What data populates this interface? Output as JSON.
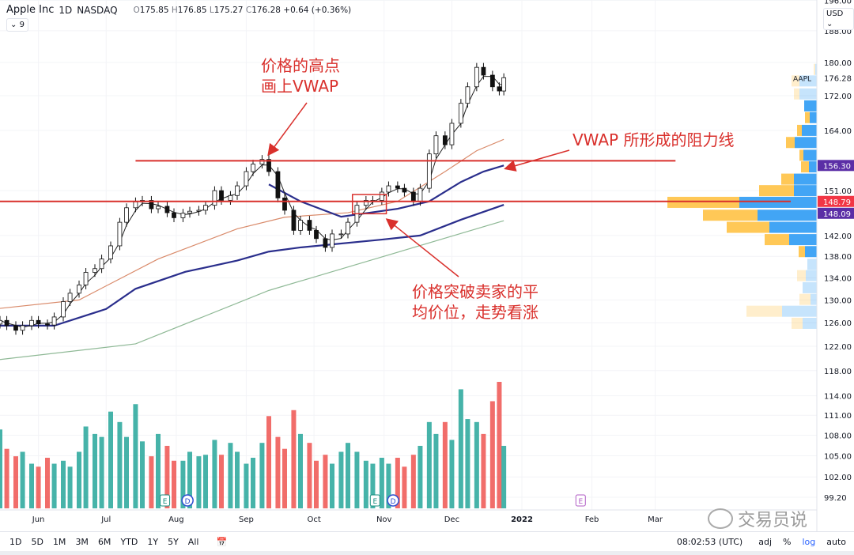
{
  "header": {
    "symbol": "Apple Inc",
    "interval": "1D",
    "exchange": "NASDAQ",
    "open_label": "O",
    "open": "175.85",
    "high_label": "H",
    "high": "176.85",
    "low_label": "L",
    "low": "175.27",
    "close_label": "C",
    "close": "176.28",
    "change": "+0.64 (+0.36%)",
    "indicators_toggle": "9",
    "currency": "USD"
  },
  "annotations": {
    "high_note": "价格的高点\n画上VWAP",
    "resistance_note": "VWAP 所形成的阻力线",
    "breakout_note": "价格突破卖家的平\n均价位，走势看涨"
  },
  "toolbar": {
    "ranges": [
      "1D",
      "5D",
      "1M",
      "3M",
      "6M",
      "YTD",
      "1Y",
      "5Y",
      "All"
    ],
    "time": "08:02:53 (UTC)",
    "adj": "adj",
    "percent": "%",
    "log": "log",
    "auto": "auto"
  },
  "watermark": "交易员说",
  "colors": {
    "up_volume": "#26a69a",
    "down_volume": "#ef5350",
    "annotation": "#d9302c",
    "vwap": "#2a2e8c",
    "profile_buy": "#42a5f5",
    "profile_sell": "#ffc857",
    "price_label": "#f23645",
    "vwap_label": "#5b2ea6"
  },
  "chart_data": {
    "type": "candlestick",
    "scale": "log",
    "ylim": [
      98,
      198
    ],
    "price_ticks": [
      "196.00",
      "188.00",
      "180.00",
      "172.00",
      "164.00",
      "151.00",
      "142.00",
      "138.00",
      "134.00",
      "130.00",
      "126.00",
      "122.00",
      "118.00",
      "114.00",
      "111.00",
      "108.00",
      "105.00",
      "102.00",
      "99.20"
    ],
    "x_ticks": [
      {
        "label": "Jun",
        "date": "2021-06-01"
      },
      {
        "label": "Jul",
        "date": "2021-07-01"
      },
      {
        "label": "Aug",
        "date": "2021-08-01"
      },
      {
        "label": "Sep",
        "date": "2021-09-01"
      },
      {
        "label": "Oct",
        "date": "2021-10-01"
      },
      {
        "label": "Nov",
        "date": "2021-11-01"
      },
      {
        "label": "Dec",
        "date": "2021-12-01"
      },
      {
        "label": "2022",
        "date": "2022-01-01"
      },
      {
        "label": "Feb",
        "date": "2022-02-01"
      },
      {
        "label": "Mar",
        "date": "2022-03-01"
      }
    ],
    "dates": [
      "2021-05-15",
      "2021-05-18",
      "2021-05-22",
      "2021-05-25",
      "2021-05-29",
      "2021-06-01",
      "2021-06-05",
      "2021-06-08",
      "2021-06-12",
      "2021-06-15",
      "2021-06-19",
      "2021-06-22",
      "2021-06-26",
      "2021-06-29",
      "2021-07-03",
      "2021-07-07",
      "2021-07-10",
      "2021-07-14",
      "2021-07-17",
      "2021-07-21",
      "2021-07-24",
      "2021-07-28",
      "2021-07-31",
      "2021-08-04",
      "2021-08-07",
      "2021-08-11",
      "2021-08-14",
      "2021-08-18",
      "2021-08-21",
      "2021-08-25",
      "2021-08-28",
      "2021-09-01",
      "2021-09-04",
      "2021-09-08",
      "2021-09-11",
      "2021-09-15",
      "2021-09-18",
      "2021-09-22",
      "2021-09-25",
      "2021-09-29",
      "2021-10-02",
      "2021-10-06",
      "2021-10-09",
      "2021-10-13",
      "2021-10-16",
      "2021-10-20",
      "2021-10-24",
      "2021-10-27",
      "2021-10-31",
      "2021-11-03",
      "2021-11-07",
      "2021-11-10",
      "2021-11-14",
      "2021-11-17",
      "2021-11-21",
      "2021-11-24",
      "2021-11-28",
      "2021-12-01",
      "2021-12-05",
      "2021-12-08",
      "2021-12-12",
      "2021-12-15",
      "2021-12-19",
      "2021-12-22",
      "2021-12-24"
    ],
    "close": [
      126.4,
      125.5,
      124.7,
      125.5,
      126.4,
      125.8,
      125.6,
      127,
      129.7,
      131.2,
      132.7,
      135,
      135.7,
      137.5,
      140,
      144.6,
      147.5,
      148.7,
      149,
      147.3,
      147.8,
      146.5,
      145.5,
      146.4,
      146.8,
      147,
      148,
      151,
      149,
      150,
      152,
      155,
      156.6,
      157.6,
      155,
      149.5,
      147,
      143,
      145,
      143,
      141.4,
      139.7,
      142.3,
      142.3,
      144.6,
      148,
      149,
      149,
      150.7,
      152,
      151.5,
      150.7,
      148.8,
      151.5,
      158.8,
      162.8,
      160.8,
      165.6,
      170.2,
      174.1,
      178.8,
      176.9,
      174.1,
      173.1,
      176.28
    ],
    "volume_relative": [
      53,
      40,
      35,
      38,
      30,
      28,
      34,
      30,
      32,
      28,
      38,
      55,
      50,
      48,
      65,
      58,
      48,
      70,
      45,
      35,
      50,
      42,
      32,
      32,
      38,
      35,
      36,
      46,
      36,
      44,
      38,
      30,
      34,
      44,
      62,
      48,
      40,
      66,
      50,
      44,
      32,
      36,
      30,
      38,
      44,
      38,
      32,
      30,
      34,
      30,
      34,
      28,
      36,
      42,
      58,
      50,
      58,
      46,
      80,
      60,
      58,
      50,
      72,
      85,
      42
    ],
    "lines": [
      {
        "color": "#d98a6a",
        "points": [
          [
            "2021-05-15",
            128.5
          ],
          [
            "2021-06-19",
            130
          ],
          [
            "2021-07-24",
            137.5
          ],
          [
            "2021-08-28",
            143.3
          ],
          [
            "2021-09-18",
            145.6
          ],
          [
            "2021-10-16",
            146.5
          ],
          [
            "2021-11-07",
            148.8
          ],
          [
            "2021-11-28",
            155
          ],
          [
            "2021-12-12",
            159.5
          ],
          [
            "2021-12-24",
            162
          ]
        ]
      },
      {
        "color": "#2a2e8c",
        "points": [
          [
            "2021-05-15",
            125.5
          ],
          [
            "2021-06-08",
            125.5
          ],
          [
            "2021-07-01",
            128.4
          ],
          [
            "2021-07-14",
            132
          ],
          [
            "2021-08-05",
            135.1
          ],
          [
            "2021-08-28",
            137.2
          ],
          [
            "2021-09-11",
            138.9
          ],
          [
            "2021-09-25",
            139.7
          ],
          [
            "2021-10-31",
            141.2
          ],
          [
            "2021-11-17",
            142
          ],
          [
            "2021-12-05",
            145.1
          ],
          [
            "2021-12-24",
            148.1
          ]
        ]
      },
      {
        "color": "#2a2e8c",
        "points": [
          [
            "2021-09-11",
            152.3
          ],
          [
            "2021-09-25",
            148.8
          ],
          [
            "2021-10-13",
            145.7
          ],
          [
            "2021-10-24",
            146.4
          ],
          [
            "2021-11-07",
            147.3
          ],
          [
            "2021-11-21",
            148.8
          ],
          [
            "2021-12-05",
            152.8
          ],
          [
            "2021-12-15",
            155
          ],
          [
            "2021-12-24",
            156.3
          ]
        ]
      },
      {
        "color": "#8fb996",
        "points": [
          [
            "2021-05-15",
            119.8
          ],
          [
            "2021-07-14",
            122.4
          ],
          [
            "2021-09-11",
            131.7
          ],
          [
            "2021-10-24",
            137
          ],
          [
            "2021-12-24",
            144.9
          ]
        ]
      }
    ],
    "horizontal_lines": [
      {
        "price": 157.3,
        "from": "2021-07-14",
        "to": "2022-03-10"
      },
      {
        "price": 148.79,
        "from": "2021-05-15",
        "to": "2022-04-30"
      }
    ],
    "breakout_box": {
      "from": "2021-10-18",
      "to": "2021-11-02",
      "low": 146.3,
      "high": 150.2
    },
    "price_labels": [
      {
        "text": "AAPL",
        "value": "176.28",
        "style": "plain"
      },
      {
        "text": "",
        "value": "156.30",
        "style": "vwap"
      },
      {
        "text": "",
        "value": "148.79",
        "style": "price"
      },
      {
        "text": "",
        "value": "148.09",
        "style": "vwap"
      }
    ],
    "volume_profile": [
      {
        "price": 178.3,
        "buy": 2,
        "sell": 2,
        "faded": true
      },
      {
        "price": 175.5,
        "buy": 22,
        "sell": 10,
        "faded": true
      },
      {
        "price": 172.4,
        "buy": 22,
        "sell": 7,
        "faded": true
      },
      {
        "price": 169.6,
        "buy": 16,
        "sell": 0
      },
      {
        "price": 166.9,
        "buy": 9,
        "sell": 6
      },
      {
        "price": 164.0,
        "buy": 19,
        "sell": 6
      },
      {
        "price": 161.3,
        "buy": 28,
        "sell": 11
      },
      {
        "price": 158.5,
        "buy": 17,
        "sell": 5
      },
      {
        "price": 156.0,
        "buy": 10,
        "sell": 10
      },
      {
        "price": 153.4,
        "buy": 29,
        "sell": 16
      },
      {
        "price": 151.0,
        "buy": 29,
        "sell": 44
      },
      {
        "price": 148.6,
        "buy": 98,
        "sell": 91
      },
      {
        "price": 146.0,
        "buy": 75,
        "sell": 69
      },
      {
        "price": 143.6,
        "buy": 60,
        "sell": 54
      },
      {
        "price": 141.2,
        "buy": 35,
        "sell": 31
      },
      {
        "price": 138.9,
        "buy": 15,
        "sell": 8
      },
      {
        "price": 136.5,
        "buy": 12,
        "sell": 0,
        "faded": true
      },
      {
        "price": 134.4,
        "buy": 14,
        "sell": 11,
        "faded": true
      },
      {
        "price": 132.2,
        "buy": 18,
        "sell": 0,
        "faded": true
      },
      {
        "price": 130.1,
        "buy": 8,
        "sell": 14,
        "faded": true
      },
      {
        "price": 128.0,
        "buy": 44,
        "sell": 45,
        "faded": true
      },
      {
        "price": 125.9,
        "buy": 18,
        "sell": 14,
        "faded": true
      }
    ],
    "events": [
      {
        "type": "E",
        "date": "2021-07-27"
      },
      {
        "type": "D",
        "date": "2021-08-06"
      },
      {
        "type": "E",
        "date": "2021-10-28"
      },
      {
        "type": "D",
        "date": "2021-11-05"
      },
      {
        "type": "E",
        "date": "2022-01-27",
        "upcoming": true
      }
    ]
  }
}
